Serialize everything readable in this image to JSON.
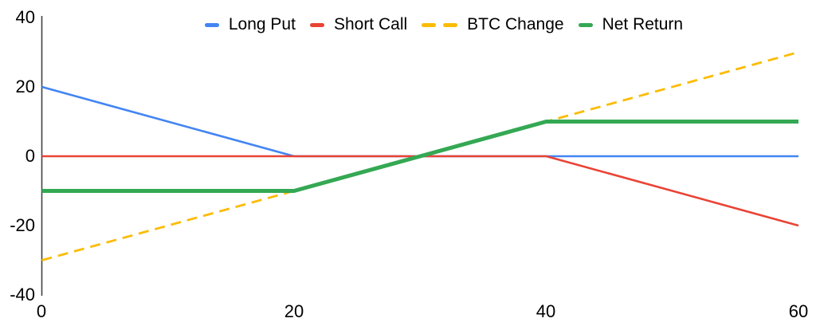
{
  "chart_data": {
    "type": "line",
    "title": "",
    "xlabel": "",
    "ylabel": "",
    "xlim": [
      0,
      60
    ],
    "ylim": [
      -40,
      40
    ],
    "x_ticks": [
      0,
      20,
      40,
      60
    ],
    "y_ticks": [
      40,
      20,
      0,
      -20,
      -40
    ],
    "grid": false,
    "legend_position": "top",
    "background": "#ffffff",
    "axis_color": "#424242",
    "text_color": "#000000",
    "series": [
      {
        "name": "Long Put",
        "color": "#4285F4",
        "dash": "solid",
        "width": 2.6,
        "points": [
          [
            0,
            20
          ],
          [
            20,
            0
          ],
          [
            60,
            0
          ]
        ]
      },
      {
        "name": "Short Call",
        "color": "#EA4335",
        "dash": "solid",
        "width": 2.6,
        "points": [
          [
            0,
            0
          ],
          [
            40,
            0
          ],
          [
            60,
            -20
          ]
        ]
      },
      {
        "name": "BTC Change",
        "color": "#FBBC04",
        "dash": "dashed",
        "width": 2.8,
        "points": [
          [
            0,
            -30
          ],
          [
            60,
            30
          ]
        ]
      },
      {
        "name": "Net Return",
        "color": "#34A853",
        "dash": "solid",
        "width": 5,
        "points": [
          [
            0,
            -10
          ],
          [
            20,
            -10
          ],
          [
            40,
            10
          ],
          [
            60,
            10
          ]
        ]
      }
    ]
  }
}
